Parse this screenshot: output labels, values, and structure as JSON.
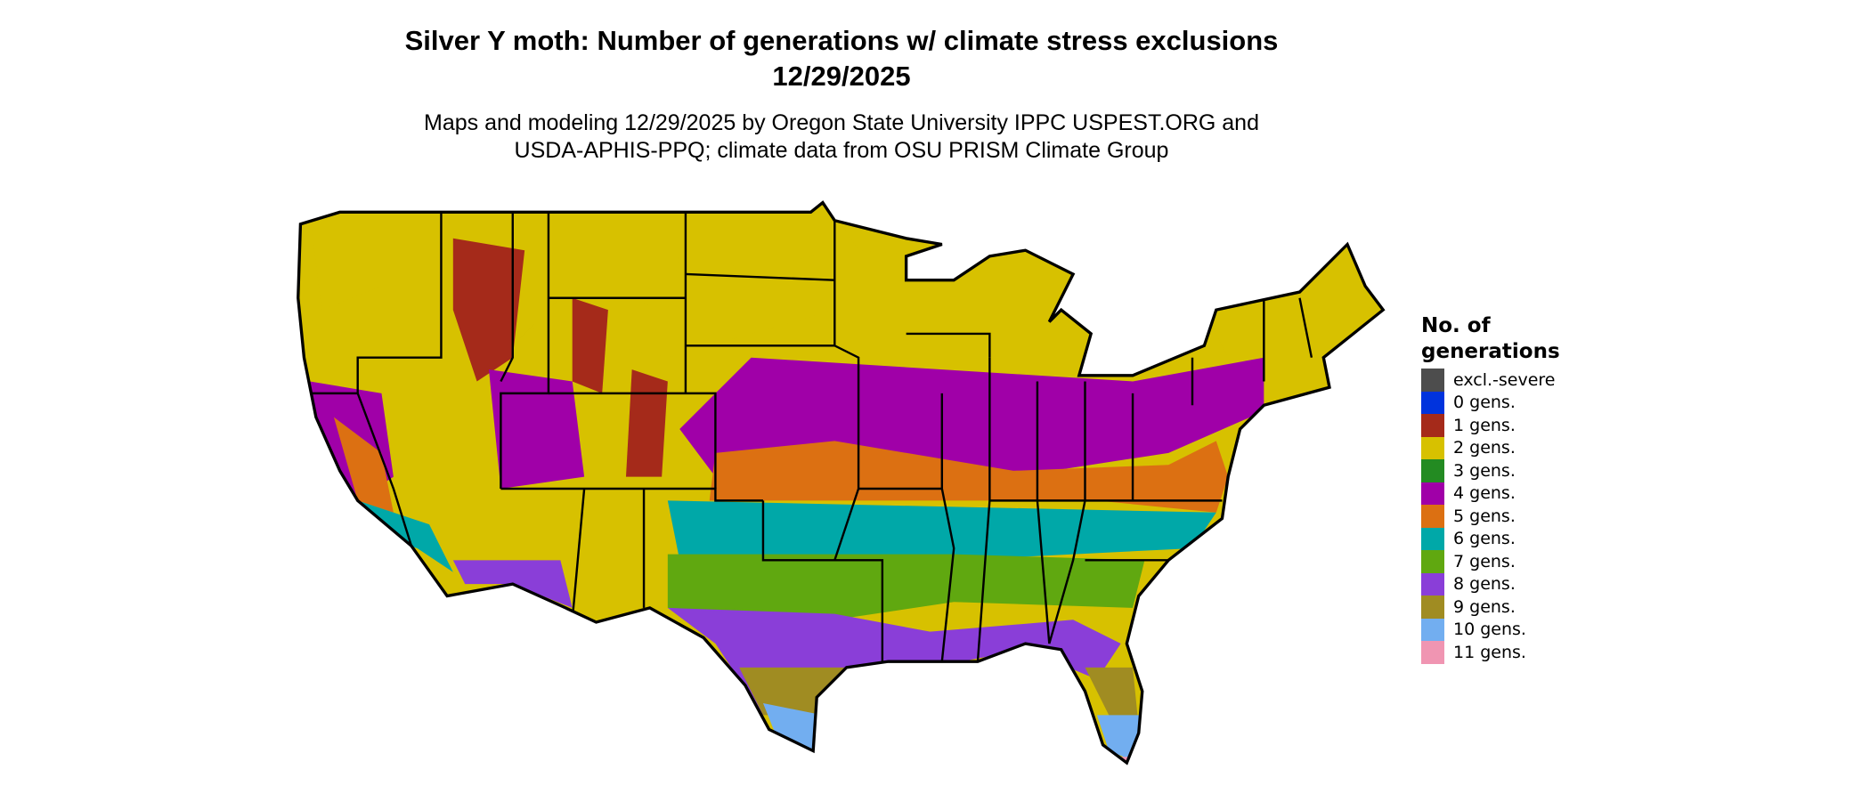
{
  "title": {
    "line1": "Silver Y moth: Number of generations w/ climate stress exclusions",
    "line2": "12/29/2025"
  },
  "subtitle": {
    "line1": "Maps and modeling 12/29/2025 by Oregon State University IPPC USPEST.ORG and",
    "line2": "USDA-APHIS-PPQ; climate data from OSU PRISM Climate Group"
  },
  "map": {
    "region": "Contiguous United States",
    "legend": {
      "title_line1": "No. of",
      "title_line2": "generations",
      "items": [
        {
          "label": "excl.-severe",
          "color": "#4d4d4d"
        },
        {
          "label": "0 gens.",
          "color": "#0033dd"
        },
        {
          "label": "1 gens.",
          "color": "#a52a1a"
        },
        {
          "label": "2 gens.",
          "color": "#d7c100"
        },
        {
          "label": "3 gens.",
          "color": "#238b22"
        },
        {
          "label": "4 gens.",
          "color": "#a000a8"
        },
        {
          "label": "5 gens.",
          "color": "#dc7012"
        },
        {
          "label": "6 gens.",
          "color": "#00a8a8"
        },
        {
          "label": "7 gens.",
          "color": "#60a810"
        },
        {
          "label": "8 gens.",
          "color": "#8a3ed8"
        },
        {
          "label": "9 gens.",
          "color": "#a08c22"
        },
        {
          "label": "10 gens.",
          "color": "#72aef0"
        },
        {
          "label": "11 gens.",
          "color": "#f095b2"
        }
      ]
    }
  }
}
